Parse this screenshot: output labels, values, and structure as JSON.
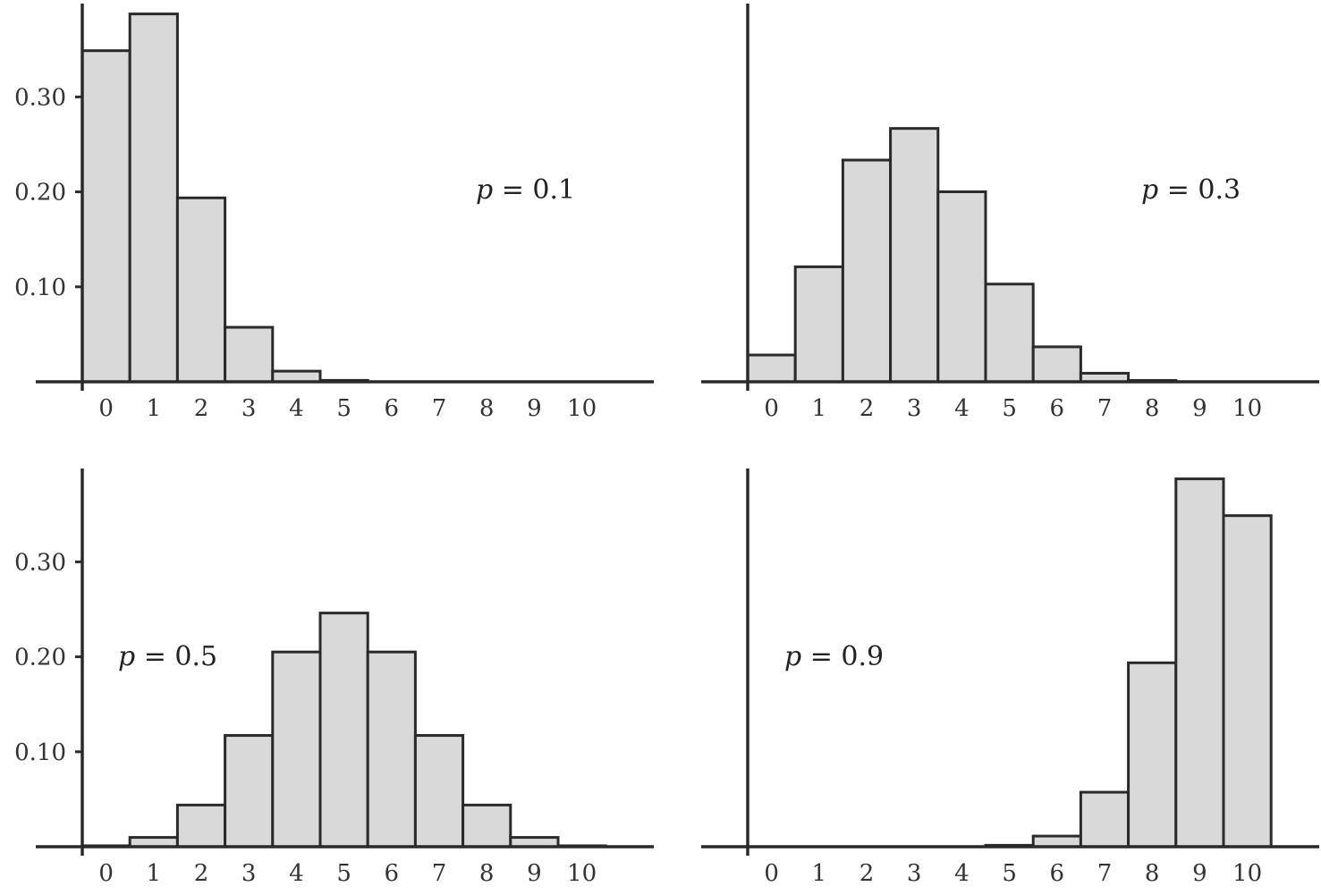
{
  "chart_data": [
    {
      "type": "bar",
      "annotation": {
        "variable": "p",
        "relation": "= ",
        "value": "0.1"
      },
      "categories": [
        "0",
        "1",
        "2",
        "3",
        "4",
        "5",
        "6",
        "7",
        "8",
        "9",
        "10"
      ],
      "values": [
        0.3487,
        0.3874,
        0.1937,
        0.0574,
        0.0112,
        0.0015,
        0.0001,
        0.0,
        0.0,
        0.0,
        0.0
      ],
      "yticks": [
        "0.10",
        "0.20",
        "0.30"
      ],
      "ylim": [
        0,
        0.4
      ]
    },
    {
      "type": "bar",
      "annotation": {
        "variable": "p",
        "relation": "= ",
        "value": "0.3"
      },
      "categories": [
        "0",
        "1",
        "2",
        "3",
        "4",
        "5",
        "6",
        "7",
        "8",
        "9",
        "10"
      ],
      "values": [
        0.0282,
        0.1211,
        0.2335,
        0.2668,
        0.2001,
        0.1029,
        0.0368,
        0.009,
        0.0014,
        0.0001,
        0.0
      ],
      "yticks": [],
      "ylim": [
        0,
        0.4
      ]
    },
    {
      "type": "bar",
      "annotation": {
        "variable": "p",
        "relation": "= ",
        "value": "0.5"
      },
      "categories": [
        "0",
        "1",
        "2",
        "3",
        "4",
        "5",
        "6",
        "7",
        "8",
        "9",
        "10"
      ],
      "values": [
        0.001,
        0.0098,
        0.0439,
        0.1172,
        0.2051,
        0.2461,
        0.2051,
        0.1172,
        0.0439,
        0.0098,
        0.001
      ],
      "yticks": [
        "0.10",
        "0.20",
        "0.30"
      ],
      "ylim": [
        0,
        0.4
      ]
    },
    {
      "type": "bar",
      "annotation": {
        "variable": "p",
        "relation": "= ",
        "value": "0.9"
      },
      "categories": [
        "0",
        "1",
        "2",
        "3",
        "4",
        "5",
        "6",
        "7",
        "8",
        "9",
        "10"
      ],
      "values": [
        0.0,
        0.0,
        0.0,
        0.0,
        0.0001,
        0.0015,
        0.0112,
        0.0574,
        0.1937,
        0.3874,
        0.3487
      ],
      "yticks": [],
      "ylim": [
        0,
        0.4
      ]
    }
  ]
}
